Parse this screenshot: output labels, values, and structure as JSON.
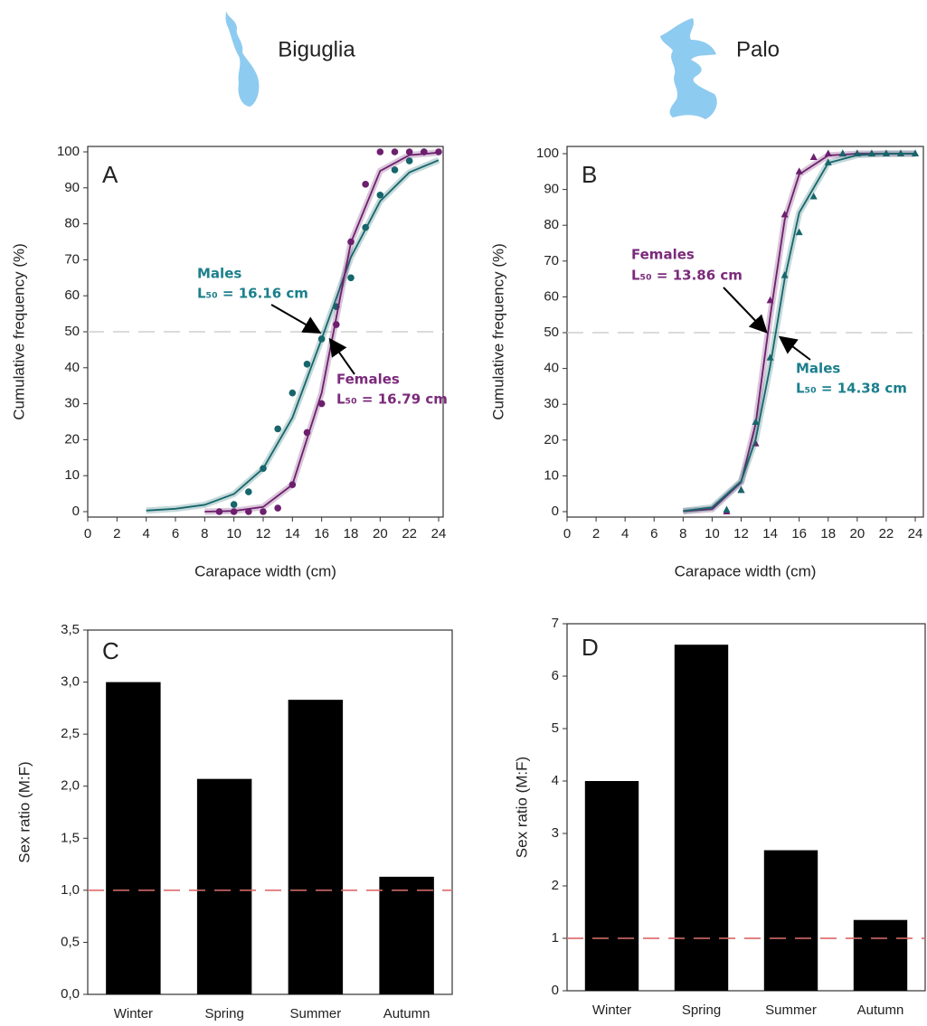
{
  "chart_data": [
    {
      "type": "scatter",
      "header": "Biguglia",
      "panel": "A",
      "x_label": "Carapace width (cm)",
      "y_label": "Cumulative frequency (%)",
      "xlim": [
        0,
        24
      ],
      "xticks": [
        0,
        2,
        4,
        6,
        8,
        10,
        12,
        14,
        16,
        18,
        20,
        22,
        24
      ],
      "ylim": [
        0,
        100
      ],
      "yticks": [
        0,
        10,
        20,
        30,
        40,
        50,
        60,
        70,
        80,
        90,
        100
      ],
      "reference_line": 50,
      "reference_color": "#cfcfcf",
      "series": [
        {
          "name": "Males",
          "annotation": "L₅₀ = 16.16 cm",
          "color": "#16666b",
          "label_color": "#1b7f8c",
          "marker": "circle",
          "x": [
            10,
            11,
            12,
            13,
            14,
            15,
            16,
            17,
            18,
            19,
            20,
            21,
            22,
            23
          ],
          "values": [
            2,
            5.5,
            12,
            23,
            33,
            41,
            48,
            57,
            65,
            79,
            88,
            95,
            97.5,
            100
          ],
          "fit": {
            "x": [
              4,
              6,
              8,
              10,
              12,
              14,
              16,
              18,
              20,
              22,
              24
            ],
            "values": [
              0.3,
              0.8,
              1.9,
              4.9,
              12,
              26.1,
              48,
              70.7,
              86.3,
              94.3,
              97.7
            ]
          }
        },
        {
          "name": "Females",
          "annotation": "L₅₀ = 16.79 cm",
          "color": "#6d1f6d",
          "label_color": "#7b2a7b",
          "marker": "circle",
          "x": [
            9,
            10,
            11,
            12,
            13,
            14,
            15,
            16,
            17,
            18,
            19,
            20,
            21,
            22,
            23,
            24
          ],
          "values": [
            0,
            0,
            0,
            0,
            1,
            7.5,
            22,
            30,
            52,
            75,
            91,
            100,
            100,
            100,
            100,
            100
          ],
          "fit": {
            "x": [
              8,
              10,
              12,
              14,
              16,
              18,
              20,
              22,
              24
            ],
            "values": [
              0,
              0.2,
              1.3,
              7.5,
              33,
              74.8,
              94.7,
              99.1,
              99.8
            ]
          }
        }
      ]
    },
    {
      "type": "scatter",
      "header": "Palo",
      "panel": "B",
      "x_label": "Carapace width (cm)",
      "y_label": "Cumulative frequency (%)",
      "xlim": [
        0,
        24
      ],
      "xticks": [
        0,
        2,
        4,
        6,
        8,
        10,
        12,
        14,
        16,
        18,
        20,
        22,
        24
      ],
      "ylim": [
        0,
        100
      ],
      "yticks": [
        0,
        10,
        20,
        30,
        40,
        50,
        60,
        70,
        80,
        90,
        100
      ],
      "reference_line": 50,
      "reference_color": "#cfcfcf",
      "series": [
        {
          "name": "Females",
          "annotation": "L₅₀ = 13.86 cm",
          "color": "#6d1f6d",
          "label_color": "#7b2a7b",
          "marker": "triangle",
          "x": [
            11,
            12,
            13,
            14,
            15,
            16,
            17,
            18,
            19,
            20,
            21,
            22,
            23,
            24
          ],
          "values": [
            0,
            6,
            19,
            59,
            83,
            95,
            99,
            100,
            100,
            100,
            100,
            100,
            100,
            100
          ],
          "fit": {
            "x": [
              8,
              10,
              12,
              13,
              14,
              15,
              16,
              18,
              20,
              22,
              24
            ],
            "values": [
              0.1,
              0.7,
              8.2,
              24.6,
              54.5,
              81.5,
              94.2,
              99.5,
              100,
              100,
              100
            ]
          }
        },
        {
          "name": "Males",
          "annotation": "L₅₀ = 14.38 cm",
          "color": "#16666b",
          "label_color": "#1b7f8c",
          "marker": "triangle",
          "x": [
            11,
            12,
            13,
            14,
            15,
            16,
            17,
            18,
            19,
            20,
            21,
            22,
            23,
            24
          ],
          "values": [
            0.5,
            6,
            25,
            43,
            66,
            78,
            88,
            97.5,
            100,
            100,
            100,
            100,
            100,
            100
          ],
          "fit": {
            "x": [
              8,
              10,
              12,
              13,
              14,
              15,
              16,
              18,
              20,
              22,
              24
            ],
            "values": [
              0.2,
              1.2,
              8.5,
              20.1,
              40.6,
              65,
              83.5,
              97.4,
              99.6,
              100,
              100
            ]
          }
        }
      ]
    },
    {
      "type": "bar",
      "panel": "C",
      "y_label": "Sex ratio (M:F)",
      "color": "#000000",
      "categories": [
        "Winter",
        "Spring",
        "Summer",
        "Autumn"
      ],
      "values": [
        3.0,
        2.07,
        2.83,
        1.13
      ],
      "ylim": [
        0,
        3.5
      ],
      "yticks": [
        {
          "value": 0,
          "label": "0,0"
        },
        {
          "value": 0.5,
          "label": "0,5"
        },
        {
          "value": 1,
          "label": "1,0"
        },
        {
          "value": 1.5,
          "label": "1,5"
        },
        {
          "value": 2,
          "label": "2,0"
        },
        {
          "value": 2.5,
          "label": "2,5"
        },
        {
          "value": 3,
          "label": "3,0"
        },
        {
          "value": 3.5,
          "label": "3,5"
        }
      ],
      "reference_line": 1,
      "reference_color": "#e07070"
    },
    {
      "type": "bar",
      "panel": "D",
      "y_label": "Sex ratio (M:F)",
      "color": "#000000",
      "categories": [
        "Winter",
        "Spring",
        "Summer",
        "Autumn"
      ],
      "values": [
        4.0,
        6.6,
        2.68,
        1.35
      ],
      "ylim": [
        0,
        7
      ],
      "yticks": [
        0,
        1,
        2,
        3,
        4,
        5,
        6,
        7
      ],
      "reference_line": 1,
      "reference_color": "#e07070"
    }
  ]
}
